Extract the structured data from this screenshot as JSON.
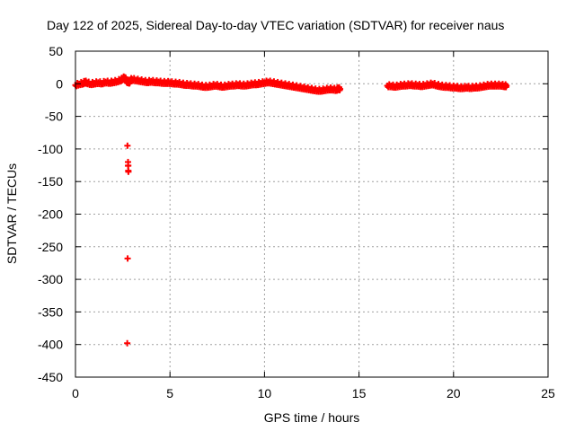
{
  "chart_data": {
    "type": "scatter",
    "title": "Day 122 of 2025, Sidereal Day-to-day VTEC variation (SDTVAR) for receiver naus",
    "xlabel": "GPS time / hours",
    "ylabel": "SDTVAR / TECUs",
    "xlim": [
      0,
      25
    ],
    "ylim": [
      -450,
      50
    ],
    "xticks": [
      0,
      5,
      10,
      15,
      20,
      25
    ],
    "yticks": [
      50,
      0,
      -50,
      -100,
      -150,
      -200,
      -250,
      -300,
      -350,
      -400,
      -450
    ],
    "grid": true,
    "marker": "+",
    "color": "#ff0000",
    "series": [
      {
        "name": "SDTVAR",
        "x": [
          0.0,
          0.2,
          0.4,
          0.5,
          0.6,
          0.8,
          1.0,
          1.2,
          1.4,
          1.6,
          1.8,
          2.0,
          2.2,
          2.4,
          2.5,
          2.6,
          2.7,
          2.75,
          2.8,
          2.85,
          2.9,
          3.0,
          3.2,
          3.4,
          3.6,
          3.8,
          4.0,
          4.2,
          4.4,
          4.6,
          4.8,
          5.0,
          5.2,
          5.4,
          5.6,
          5.8,
          6.0,
          6.2,
          6.4,
          6.6,
          6.8,
          7.0,
          7.2,
          7.4,
          7.6,
          7.8,
          8.0,
          8.2,
          8.4,
          8.6,
          8.8,
          9.0,
          9.2,
          9.4,
          9.6,
          9.8,
          10.0,
          10.2,
          10.4,
          10.6,
          10.8,
          11.0,
          11.2,
          11.4,
          11.6,
          11.8,
          12.0,
          12.2,
          12.4,
          12.6,
          12.8,
          13.0,
          13.2,
          13.4,
          13.6,
          13.8,
          13.9,
          14.0,
          16.5,
          16.7,
          16.9,
          17.1,
          17.3,
          17.5,
          17.7,
          17.9,
          18.1,
          18.3,
          18.5,
          18.7,
          18.9,
          19.1,
          19.3,
          19.5,
          19.7,
          19.9,
          20.1,
          20.3,
          20.5,
          20.7,
          20.9,
          21.1,
          21.3,
          21.5,
          21.7,
          21.9,
          22.1,
          22.3,
          22.5,
          22.7,
          22.8,
          2.75,
          2.78,
          2.8,
          2.76,
          2.74
        ],
        "y": [
          -2,
          0,
          1,
          3,
          2,
          0,
          1,
          2,
          1,
          3,
          2,
          3,
          4,
          6,
          8,
          10,
          5,
          3,
          4,
          2,
          6,
          7,
          6,
          5,
          4,
          3,
          4,
          3,
          3,
          2,
          2,
          2,
          1,
          1,
          0,
          -1,
          -1,
          -2,
          -2,
          -3,
          -4,
          -4,
          -3,
          -2,
          -3,
          -4,
          -3,
          -2,
          -2,
          -1,
          -2,
          -2,
          -1,
          0,
          0,
          1,
          2,
          3,
          2,
          1,
          0,
          -1,
          -2,
          -3,
          -4,
          -5,
          -6,
          -7,
          -8,
          -9,
          -10,
          -10,
          -9,
          -8,
          -8,
          -9,
          -7,
          -8,
          -3,
          -3,
          -4,
          -3,
          -2,
          -2,
          -1,
          -2,
          -2,
          -3,
          -2,
          -1,
          0,
          -2,
          -3,
          -4,
          -4,
          -5,
          -5,
          -6,
          -6,
          -5,
          -6,
          -5,
          -5,
          -4,
          -3,
          -2,
          -2,
          -2,
          -2,
          -3,
          -3,
          -95,
          -120,
          -135,
          -268,
          -398
        ]
      }
    ]
  }
}
